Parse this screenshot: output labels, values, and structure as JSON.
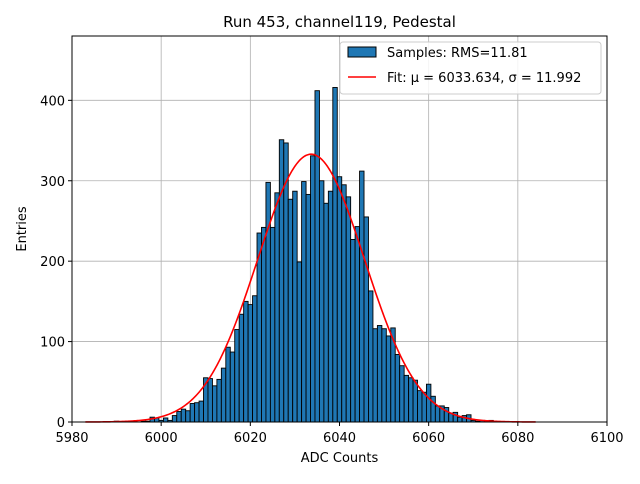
{
  "chart_data": {
    "type": "bar",
    "title": "Run 453, channel119, Pedestal",
    "xlabel": "ADC Counts",
    "ylabel": "Entries",
    "xlim": [
      5980,
      6100
    ],
    "ylim": [
      0,
      480
    ],
    "xticks": [
      5980,
      6000,
      6020,
      6040,
      6060,
      6080,
      6100
    ],
    "yticks": [
      0,
      100,
      200,
      300,
      400
    ],
    "grid": true,
    "legend_position": "top-right",
    "bin_width": 1,
    "bins": [
      [
        5990,
        1
      ],
      [
        5994,
        1
      ],
      [
        5996,
        1
      ],
      [
        5997,
        1
      ],
      [
        5998,
        6
      ],
      [
        5999,
        5
      ],
      [
        6000,
        2
      ],
      [
        6001,
        5
      ],
      [
        6002,
        2
      ],
      [
        6003,
        8
      ],
      [
        6004,
        13
      ],
      [
        6005,
        16
      ],
      [
        6006,
        14
      ],
      [
        6007,
        23
      ],
      [
        6008,
        24
      ],
      [
        6009,
        26
      ],
      [
        6010,
        55
      ],
      [
        6011,
        54
      ],
      [
        6012,
        45
      ],
      [
        6013,
        53
      ],
      [
        6014,
        67
      ],
      [
        6015,
        93
      ],
      [
        6016,
        87
      ],
      [
        6017,
        115
      ],
      [
        6018,
        134
      ],
      [
        6019,
        150
      ],
      [
        6020,
        146
      ],
      [
        6021,
        157
      ],
      [
        6022,
        235
      ],
      [
        6023,
        242
      ],
      [
        6024,
        298
      ],
      [
        6025,
        242
      ],
      [
        6026,
        285
      ],
      [
        6027,
        351
      ],
      [
        6028,
        347
      ],
      [
        6029,
        277
      ],
      [
        6030,
        287
      ],
      [
        6031,
        199
      ],
      [
        6032,
        299
      ],
      [
        6033,
        283
      ],
      [
        6034,
        331
      ],
      [
        6035,
        412
      ],
      [
        6036,
        300
      ],
      [
        6037,
        272
      ],
      [
        6038,
        287
      ],
      [
        6039,
        416
      ],
      [
        6040,
        305
      ],
      [
        6041,
        295
      ],
      [
        6042,
        280
      ],
      [
        6043,
        227
      ],
      [
        6044,
        243
      ],
      [
        6045,
        312
      ],
      [
        6046,
        255
      ],
      [
        6047,
        163
      ],
      [
        6048,
        116
      ],
      [
        6049,
        120
      ],
      [
        6050,
        116
      ],
      [
        6051,
        107
      ],
      [
        6052,
        117
      ],
      [
        6053,
        84
      ],
      [
        6054,
        70
      ],
      [
        6055,
        58
      ],
      [
        6056,
        55
      ],
      [
        6057,
        52
      ],
      [
        6058,
        39
      ],
      [
        6059,
        37
      ],
      [
        6060,
        47
      ],
      [
        6061,
        32
      ],
      [
        6062,
        20
      ],
      [
        6063,
        20
      ],
      [
        6064,
        18
      ],
      [
        6065,
        11
      ],
      [
        6066,
        12
      ],
      [
        6067,
        6
      ],
      [
        6068,
        8
      ],
      [
        6069,
        9
      ],
      [
        6070,
        2
      ],
      [
        6071,
        1
      ],
      [
        6072,
        2
      ],
      [
        6073,
        1
      ],
      [
        6074,
        2
      ]
    ],
    "fit": {
      "mu": 6033.634,
      "sigma": 11.992,
      "amplitude": 333,
      "x_range": [
        5983,
        6084
      ],
      "color": "#ff0000"
    },
    "bar_color": "#1f77b4",
    "bar_edge_color": "#000000",
    "legend": [
      {
        "label": "Samples: RMS=11.81",
        "kind": "patch",
        "color": "#1f77b4"
      },
      {
        "label": "Fit: μ = 6033.634, σ = 11.992",
        "kind": "line",
        "color": "#ff0000"
      }
    ]
  }
}
